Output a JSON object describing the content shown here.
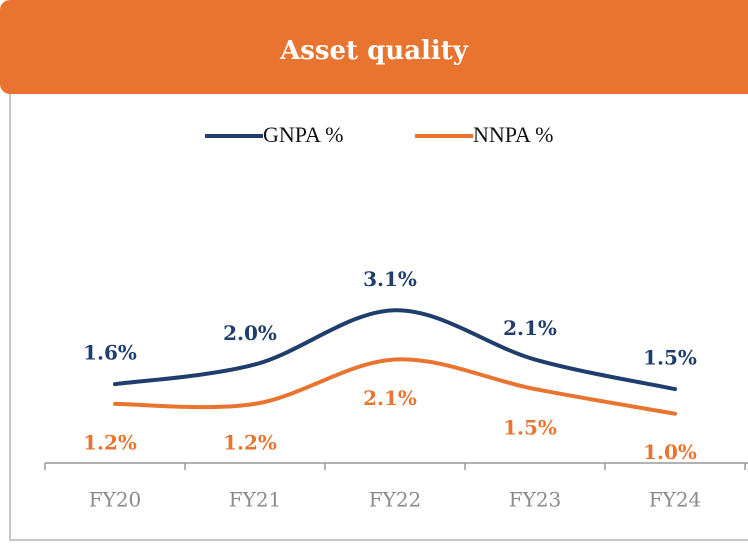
{
  "chart_data": {
    "type": "line",
    "title": "Asset quality",
    "categories": [
      "FY20",
      "FY21",
      "FY22",
      "FY23",
      "FY24"
    ],
    "series": [
      {
        "name": "GNPA %",
        "color": "#1f3d6d",
        "values": [
          1.6,
          2.0,
          3.1,
          2.1,
          1.5
        ],
        "value_labels": [
          "1.6%",
          "2.0%",
          "3.1%",
          "2.1%",
          "1.5%"
        ]
      },
      {
        "name": "NNPA %",
        "color": "#e8742f",
        "values": [
          1.2,
          1.2,
          2.1,
          1.5,
          1.0
        ],
        "value_labels": [
          "1.2%",
          "1.2%",
          "2.1%",
          "1.5%",
          "1.0%"
        ]
      }
    ],
    "ylim": [
      0,
      5.5
    ],
    "legend": "top",
    "smooth": true
  }
}
